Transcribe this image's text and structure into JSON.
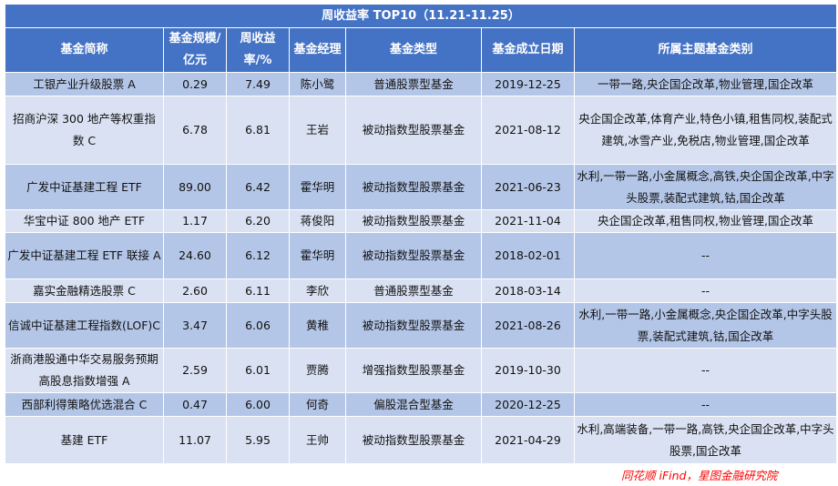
{
  "title": "周收益率 TOP10（11.21-11.25）",
  "headers": [
    "基金简称",
    "基金规模/亿元",
    "周收益率/%",
    "基金经理",
    "基金类型",
    "基金成立日期",
    "所属主题基金类别"
  ],
  "rows": [
    [
      "工银产业升级股票 A",
      "0.29",
      "7.49",
      "陈小鹭",
      "普通股票型基金",
      "2019-12-25",
      "一带一路,央企国企改革,物业管理,国企改革"
    ],
    [
      "招商沪深 300 地产等权重指数 C",
      "6.78",
      "6.81",
      "王岩",
      "被动指数型股票基金",
      "2021-08-12",
      "央企国企改革,体育产业,特色小镇,租售同权,装配式建筑,冰雪产业,免税店,物业管理,国企改革"
    ],
    [
      "广发中证基建工程 ETF",
      "89.00",
      "6.42",
      "霍华明",
      "被动指数型股票基金",
      "2021-06-23",
      "水利,一带一路,小金属概念,高铁,央企国企改革,中字头股票,装配式建筑,钴,国企改革"
    ],
    [
      "华宝中证 800 地产 ETF",
      "1.17",
      "6.20",
      "蒋俊阳",
      "被动指数型股票基金",
      "2021-11-04",
      "央企国企改革,租售同权,物业管理,国企改革"
    ],
    [
      "广发中证基建工程 ETF 联接 A",
      "24.60",
      "6.12",
      "霍华明",
      "被动指数型股票基金",
      "2018-02-01",
      "--"
    ],
    [
      "嘉实金融精选股票 C",
      "2.60",
      "6.11",
      "李欣",
      "普通股票型基金",
      "2018-03-14",
      "--"
    ],
    [
      "信诚中证基建工程指数(LOF)C",
      "3.47",
      "6.06",
      "黄稚",
      "被动指数型股票基金",
      "2021-08-26",
      "水利,一带一路,小金属概念,央企国企改革,中字头股票,装配式建筑,钴,国企改革"
    ],
    [
      "浙商港股通中华交易服务预期高股息指数增强 A",
      "2.59",
      "6.01",
      "贾腾",
      "增强指数型股票基金",
      "2019-10-30",
      "--"
    ],
    [
      "西部利得策略优选混合 C",
      "0.47",
      "6.00",
      "何奇",
      "偏股混合型基金",
      "2020-12-25",
      "--"
    ],
    [
      "基建 ETF",
      "11.07",
      "5.95",
      "王帅",
      "被动指数型股票基金",
      "2021-04-29",
      "水利,高端装备,一带一路,高铁,央企国企改革,中字头股票,国企改革"
    ]
  ],
  "source": "同花顺 iFind，星图金融研究院",
  "colors": {
    "header": "#4472C4",
    "row_dark": "#B4C6E7",
    "row_light": "#D9E1F2",
    "source": "#FF0000"
  }
}
